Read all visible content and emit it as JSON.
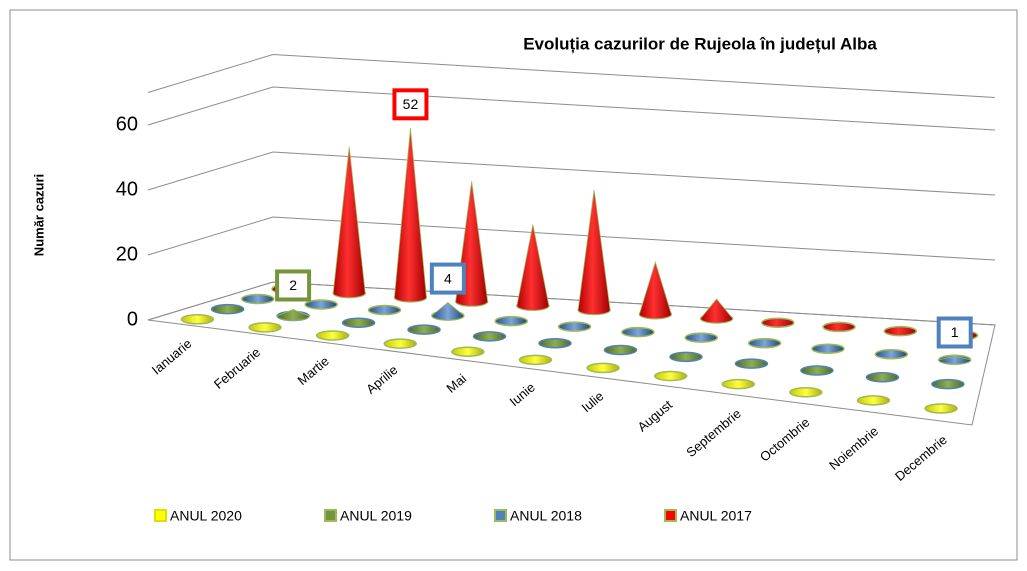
{
  "chart_data": {
    "type": "cone3d",
    "title": "Evoluția cazurilor de Rujeola în județul Alba",
    "y_label": "Număr cazuri",
    "categories": [
      "Ianuarie",
      "Februarie",
      "Martie",
      "Aprilie",
      "Mai",
      "Iunie",
      "Iulie",
      "August",
      "Septembrie",
      "Octombrie",
      "Noiembrie",
      "Decembrie"
    ],
    "series": [
      {
        "name": "ANUL 2020",
        "color": "#ffff00",
        "values": [
          0,
          0,
          0,
          0,
          0,
          0,
          0,
          0,
          0,
          0,
          0,
          0
        ]
      },
      {
        "name": "ANUL 2019",
        "color": "#77933c",
        "values": [
          0,
          2,
          0,
          0,
          0,
          0,
          0,
          0,
          0,
          0,
          0,
          0
        ],
        "value_labels": [
          null,
          "2",
          null,
          null,
          null,
          null,
          null,
          null,
          null,
          null,
          null,
          null
        ]
      },
      {
        "name": "ANUL 2018",
        "color": "#4f81bd",
        "values": [
          0,
          0,
          0,
          4,
          0,
          0,
          0,
          0,
          0,
          0,
          0,
          1
        ],
        "value_labels": [
          null,
          null,
          null,
          "4",
          null,
          null,
          null,
          null,
          null,
          null,
          null,
          "1"
        ]
      },
      {
        "name": "ANUL 2017",
        "color": "#ff0000",
        "values": [
          4,
          45,
          52,
          37,
          25,
          37,
          16,
          6,
          0,
          0,
          0,
          0
        ],
        "value_labels": [
          null,
          null,
          "52",
          null,
          null,
          null,
          null,
          null,
          null,
          null,
          null,
          null
        ]
      }
    ],
    "ylim": [
      0,
      70
    ],
    "yticks": [
      0,
      20,
      40,
      60
    ],
    "grid": true,
    "legend": "bottom"
  }
}
